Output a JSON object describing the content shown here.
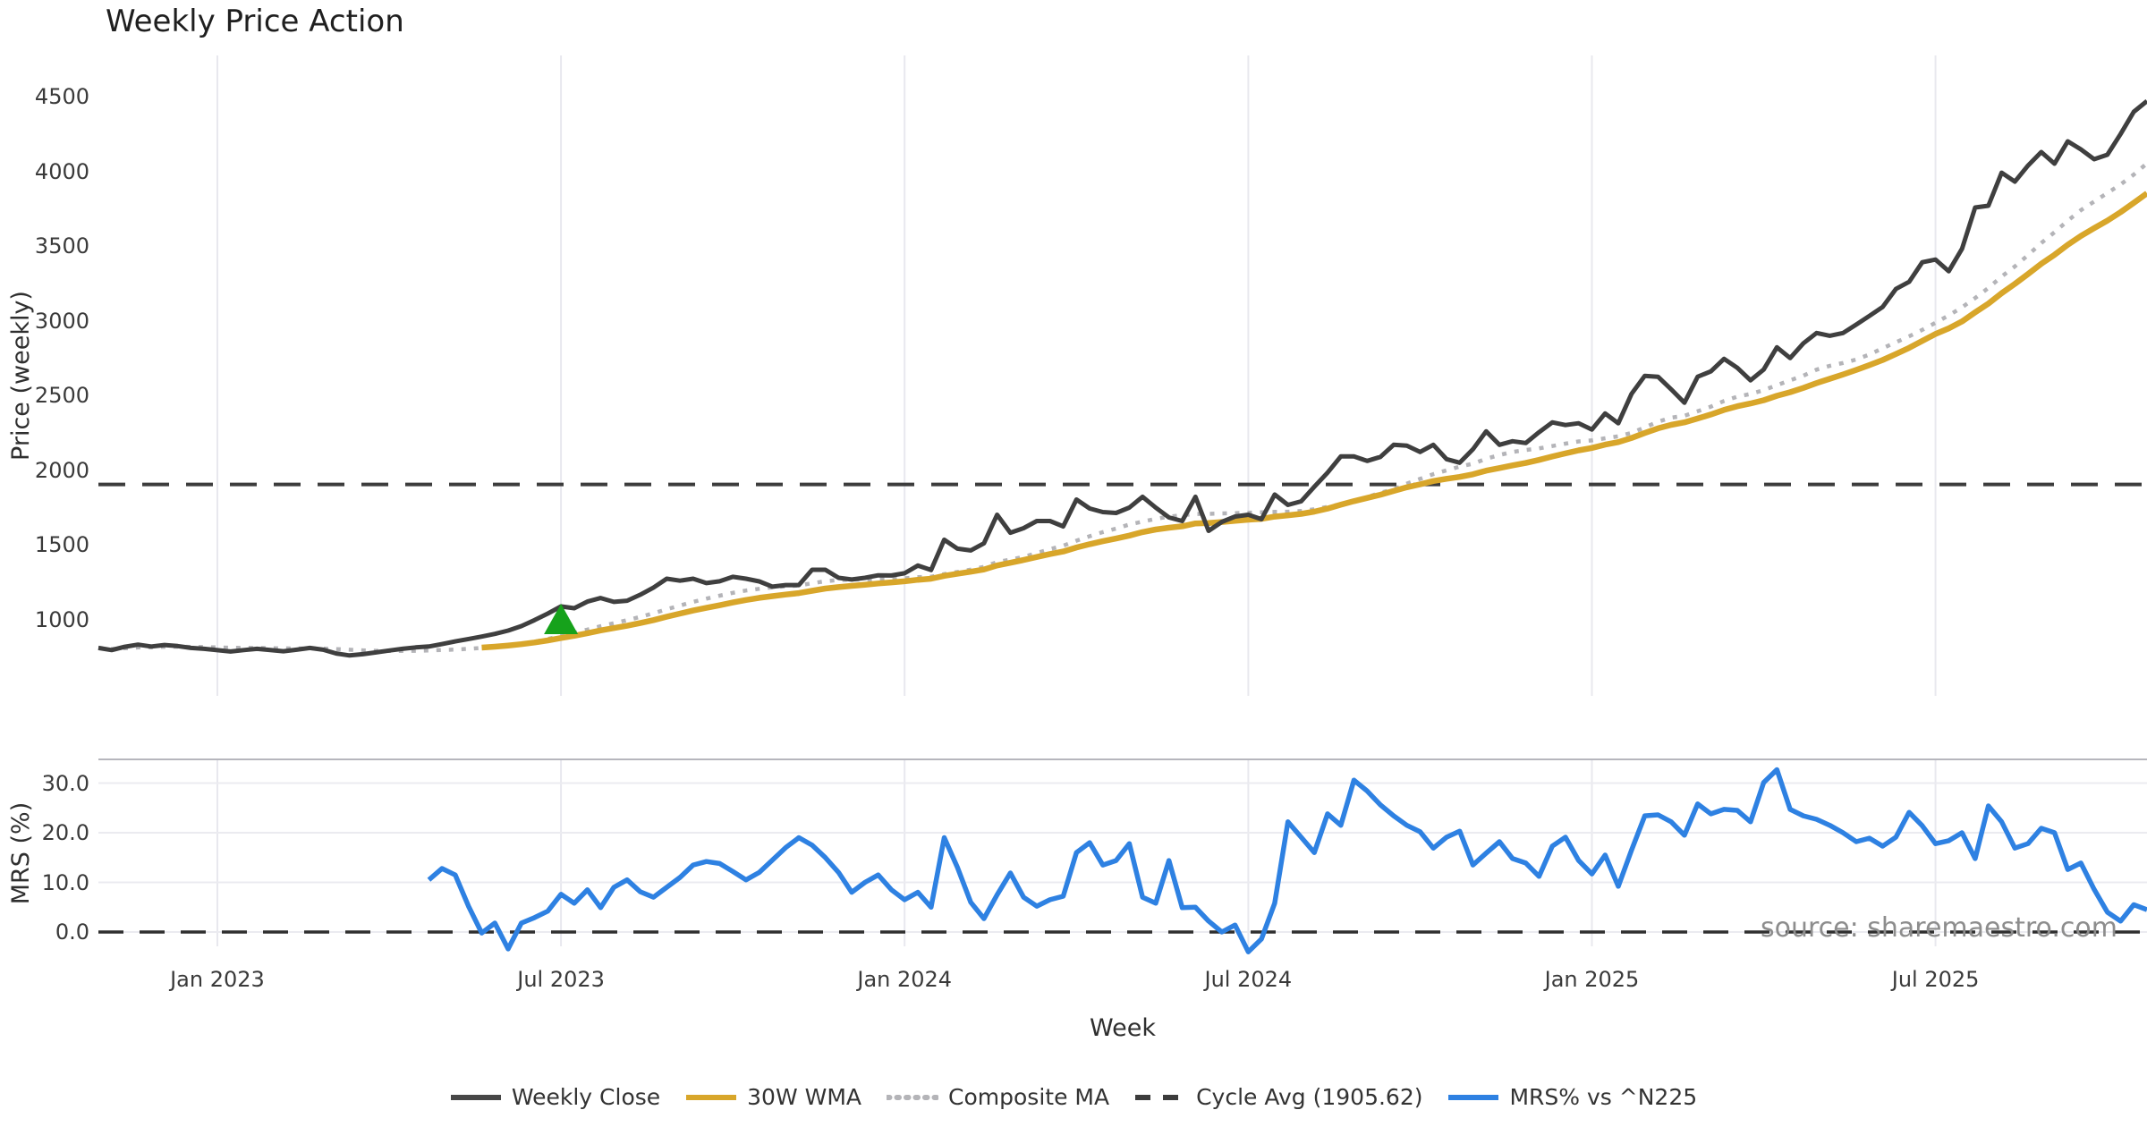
{
  "title": "Weekly Price Action",
  "watermark": "source: sharemaestro.com",
  "chart_data": {
    "type": "line",
    "title": "Weekly Price Action",
    "xlabel": "Week",
    "x_tick_labels": [
      "Jan 2023",
      "Jul 2023",
      "Jan 2024",
      "Jul 2024",
      "Jan 2025",
      "Jul 2025"
    ],
    "x_tick_week_indices": [
      9,
      35,
      61,
      87,
      113,
      139
    ],
    "n_weeks": 156,
    "panels": [
      {
        "name": "price",
        "ylabel": "Price (weekly)",
        "ylim": [
          700,
          4600
        ],
        "yticks": [
          1000,
          1500,
          2000,
          2500,
          3000,
          3500,
          4000,
          4500
        ],
        "ytick_labels": [
          "1000",
          "1500",
          "2000",
          "2500",
          "3000",
          "3500",
          "4000",
          "4500"
        ],
        "grid": "vertical-only"
      },
      {
        "name": "mrs",
        "ylabel": "MRS (%)",
        "ylim": [
          -6,
          34.8
        ],
        "yticks": [
          0,
          10,
          20,
          30
        ],
        "ytick_labels": [
          "0.0",
          "10.0",
          "20.0",
          "30.0"
        ],
        "grid": "horizontal-and-vertical",
        "zero_line_dashed": true
      }
    ],
    "series": [
      {
        "name": "Weekly Close",
        "panel": "price",
        "color": "#3f3f3f",
        "style": "solid",
        "width": 5,
        "start_week": 0,
        "values": [
          812,
          798,
          820,
          834,
          822,
          832,
          825,
          812,
          806,
          797,
          788,
          798,
          806,
          798,
          790,
          800,
          812,
          800,
          775,
          762,
          770,
          782,
          795,
          806,
          816,
          822,
          838,
          856,
          872,
          888,
          906,
          928,
          958,
          998,
          1042,
          1090,
          1078,
          1122,
          1146,
          1120,
          1128,
          1168,
          1216,
          1275,
          1262,
          1275,
          1246,
          1258,
          1288,
          1275,
          1257,
          1222,
          1233,
          1233,
          1335,
          1335,
          1281,
          1270,
          1281,
          1298,
          1297,
          1312,
          1363,
          1333,
          1536,
          1476,
          1464,
          1512,
          1703,
          1583,
          1613,
          1661,
          1661,
          1625,
          1805,
          1745,
          1721,
          1715,
          1751,
          1823,
          1751,
          1685,
          1661,
          1823,
          1595,
          1655,
          1691,
          1703,
          1673,
          1838,
          1769,
          1793,
          1890,
          1985,
          2093,
          2093,
          2063,
          2090,
          2171,
          2165,
          2123,
          2171,
          2075,
          2051,
          2141,
          2261,
          2171,
          2195,
          2183,
          2255,
          2321,
          2303,
          2315,
          2273,
          2381,
          2315,
          2512,
          2632,
          2626,
          2542,
          2452,
          2626,
          2662,
          2746,
          2686,
          2602,
          2674,
          2823,
          2751,
          2850,
          2919,
          2900,
          2919,
          2975,
          3033,
          3093,
          3213,
          3261,
          3392,
          3410,
          3332,
          3482,
          3758,
          3770,
          3991,
          3931,
          4039,
          4129,
          4051,
          4201,
          4147,
          4081,
          4111,
          4250,
          4398,
          4470
        ]
      },
      {
        "name": "30W WMA",
        "panel": "price",
        "color": "#d8a62a",
        "style": "solid",
        "width": 6.5,
        "derived": "30-week linearly-weighted moving average of Weekly Close (drawn from week 29)"
      },
      {
        "name": "Composite MA",
        "panel": "price",
        "color": "#b4b4b8",
        "style": "dotted",
        "width": 4.5,
        "derived": "15-week expanding simple moving average of Weekly Close (drawn from week 0)"
      },
      {
        "name": "Cycle Avg (1905.62)",
        "panel": "price",
        "color": "#3c3c3c",
        "style": "dashed",
        "width": 4,
        "constant": 1905.62
      },
      {
        "name": "MRS% vs ^N225",
        "panel": "mrs",
        "color": "#2e81e2",
        "style": "solid",
        "width": 5.5,
        "start_week": 25,
        "values": [
          10.5,
          12.8,
          11.5,
          5.2,
          -0.2,
          1.8,
          -3.4,
          1.8,
          2.9,
          4.2,
          7.6,
          5.8,
          8.5,
          4.9,
          9.0,
          10.5,
          8.1,
          7.0,
          9.0,
          11.0,
          13.5,
          14.2,
          13.8,
          12.2,
          10.5,
          12.0,
          14.5,
          17.0,
          19.0,
          17.5,
          15.0,
          12.0,
          8.0,
          10.0,
          11.5,
          8.5,
          6.5,
          8.0,
          5.0,
          19.0,
          13.0,
          6.0,
          2.7,
          7.5,
          11.9,
          7.0,
          5.2,
          6.5,
          7.2,
          16.0,
          18.0,
          13.5,
          14.4,
          17.8,
          7.0,
          5.8,
          14.4,
          4.9,
          5.0,
          2.2,
          0.0,
          1.4,
          -4.0,
          -1.4,
          5.8,
          22.2,
          19.1,
          16.0,
          23.8,
          21.5,
          30.6,
          28.4,
          25.6,
          23.4,
          21.5,
          20.2,
          16.9,
          19.1,
          20.3,
          13.5,
          15.9,
          18.2,
          14.8,
          13.9,
          11.2,
          17.3,
          19.1,
          14.4,
          11.7,
          15.5,
          9.2,
          16.5,
          23.4,
          23.6,
          22.2,
          19.5,
          25.8,
          23.8,
          24.7,
          24.5,
          22.2,
          30.1,
          32.7,
          24.7,
          23.4,
          22.7,
          21.5,
          20.0,
          18.2,
          18.9,
          17.3,
          19.1,
          24.1,
          21.4,
          17.8,
          18.4,
          20.0,
          14.8,
          25.4,
          22.2,
          16.9,
          17.8,
          20.9,
          20.0,
          12.6,
          13.9,
          8.6,
          4.0,
          2.2,
          5.5,
          4.5
        ]
      }
    ],
    "markers": [
      {
        "shape": "triangle-up",
        "color": "#16a21b",
        "panel": "price",
        "week_index": 35,
        "price": 1000
      }
    ],
    "cycle_avg_value": 1905.62,
    "legend_position": "bottom-center",
    "grid_color": "#e8e8ee"
  },
  "legend": {
    "items": [
      {
        "label": "Weekly Close",
        "color": "#474747",
        "style": "solid"
      },
      {
        "label": "30W WMA",
        "color": "#d8a62a",
        "style": "solid"
      },
      {
        "label": "Composite MA",
        "color": "#b4b4b8",
        "style": "dotted"
      },
      {
        "label": "Cycle Avg (1905.62)",
        "color": "#3c3c3c",
        "style": "dashed"
      },
      {
        "label": "MRS% vs ^N225",
        "color": "#2e81e2",
        "style": "solid"
      }
    ]
  }
}
